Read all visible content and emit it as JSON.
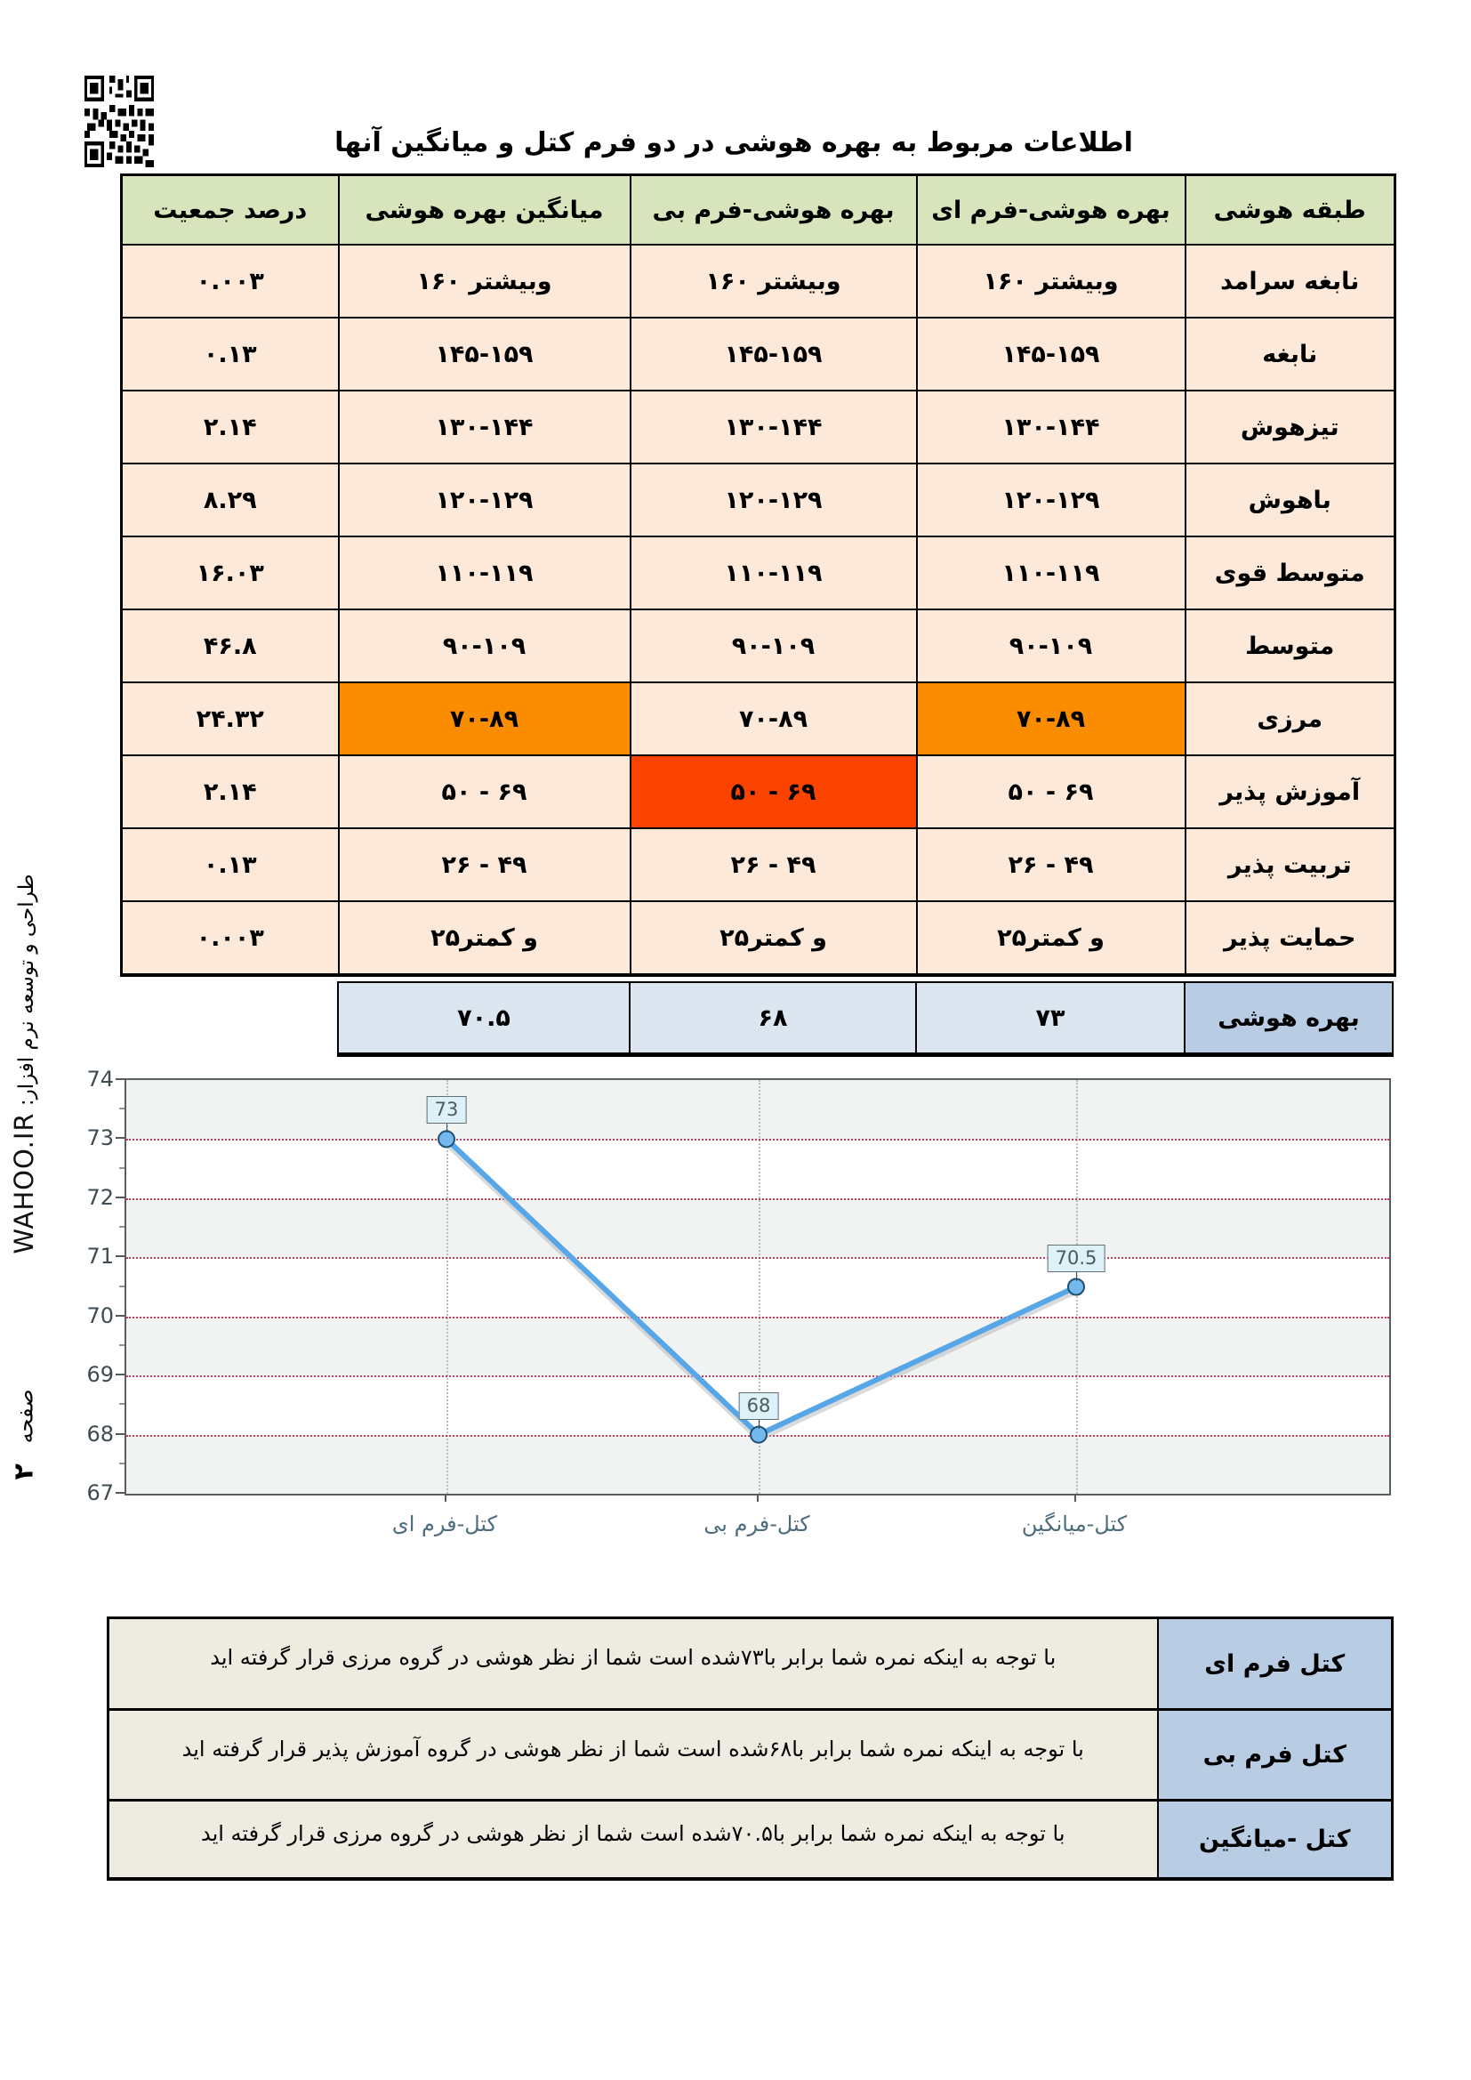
{
  "title": "اطلاعات مربوط به بهره هوشی در دو فرم کتل و میانگین آنها",
  "sidebar": {
    "credit_fa": "طراحی و توسعه نرم افزار:",
    "credit_en": "WAHOO.IR",
    "page_label": "صفحه",
    "page_number": "۲"
  },
  "iq_table": {
    "headers": [
      "طبقه هوشی",
      "بهره هوشی-فرم ای",
      "بهره هوشی-فرم بی",
      "میانگین بهره هوشی",
      "درصد جمعیت"
    ],
    "rows": [
      {
        "class": "نابغه سرامد",
        "form_a": "وبیشتر ۱۶۰",
        "form_b": "وبیشتر ۱۶۰",
        "mean": "وبیشتر ۱۶۰",
        "percent": "۰.۰۰۳",
        "highlight": {}
      },
      {
        "class": "نابغه",
        "form_a": "۱۴۵-۱۵۹",
        "form_b": "۱۴۵-۱۵۹",
        "mean": "۱۴۵-۱۵۹",
        "percent": "۰.۱۳",
        "highlight": {}
      },
      {
        "class": "تیزهوش",
        "form_a": "۱۳۰-۱۴۴",
        "form_b": "۱۳۰-۱۴۴",
        "mean": "۱۳۰-۱۴۴",
        "percent": "۲.۱۴",
        "highlight": {}
      },
      {
        "class": "باهوش",
        "form_a": "۱۲۰-۱۲۹",
        "form_b": "۱۲۰-۱۲۹",
        "mean": "۱۲۰-۱۲۹",
        "percent": "۸.۲۹",
        "highlight": {}
      },
      {
        "class": "متوسط قوی",
        "form_a": "۱۱۰-۱۱۹",
        "form_b": "۱۱۰-۱۱۹",
        "mean": "۱۱۰-۱۱۹",
        "percent": "۱۶.۰۳",
        "highlight": {}
      },
      {
        "class": "متوسط",
        "form_a": "۹۰-۱۰۹",
        "form_b": "۹۰-۱۰۹",
        "mean": "۹۰-۱۰۹",
        "percent": "۴۶.۸",
        "highlight": {}
      },
      {
        "class": "مرزی",
        "form_a": "۷۰-۸۹",
        "form_b": "۷۰-۸۹",
        "mean": "۷۰-۸۹",
        "percent": "۲۴.۳۲",
        "highlight": {
          "form_a": "orange",
          "mean": "orange"
        }
      },
      {
        "class": "آموزش پذیر",
        "form_a": "۵۰ - ۶۹",
        "form_b": "۵۰ - ۶۹",
        "mean": "۵۰ - ۶۹",
        "percent": "۲.۱۴",
        "highlight": {
          "form_b": "red"
        }
      },
      {
        "class": "تربیت پذیر",
        "form_a": "۲۶ - ۴۹",
        "form_b": "۲۶ - ۴۹",
        "mean": "۲۶ - ۴۹",
        "percent": "۰.۱۳",
        "highlight": {}
      },
      {
        "class": "حمایت پذیر",
        "form_a": "و کمتر۲۵",
        "form_b": "و کمتر۲۵",
        "mean": "و کمتر۲۵",
        "percent": "۰.۰۰۳",
        "highlight": {}
      }
    ],
    "summary": {
      "label": "بهره هوشی",
      "form_a": "۷۳",
      "form_b": "۶۸",
      "mean": "۷۰.۵"
    }
  },
  "chart_data": {
    "type": "line",
    "categories": [
      "کتل-فرم ای",
      "کتل-فرم بی",
      "کتل-میانگین"
    ],
    "values": [
      73,
      68,
      70.5
    ],
    "point_labels": [
      "73",
      "68",
      "70.5"
    ],
    "title": "",
    "xlabel": "",
    "ylabel": "",
    "ylim": [
      67,
      74
    ],
    "yticks": [
      74,
      73,
      72,
      71,
      70,
      69,
      68,
      67
    ],
    "grid": "horizontal red dotted + vertical category dotted, alternating gray bands",
    "legend": "none"
  },
  "results_table": {
    "rows": [
      {
        "label": "کتل فرم ای",
        "text": "با توجه به اینکه نمره شما برابر با۷۳شده است شما از نظر هوشی در گروه مرزی قرار گرفته اید"
      },
      {
        "label": "کتل فرم بی",
        "text": "با توجه به اینکه نمره شما برابر با۶۸شده است شما از نظر هوشی در گروه آموزش پذیر قرار گرفته اید"
      },
      {
        "label": "کتل -میانگین",
        "text": "با توجه به اینکه نمره شما برابر با۷۰.۵شده است شما از نظر هوشی در گروه مرزی قرار گرفته اید"
      }
    ]
  },
  "colors": {
    "header_green": "#d7e4bc",
    "cell_cream": "#fde9d9",
    "highlight_orange": "#fa8c00",
    "highlight_red": "#fb4300",
    "summary_value_blue": "#dce6f1",
    "summary_label_blue": "#b8cce4",
    "result_label_blue": "#b8cce4",
    "result_text_bg": "#eeece1",
    "line_blue": "#57a7e8",
    "marker_fill": "#74b9ee",
    "marker_stroke": "#20506f",
    "grid_red": "#c9173a",
    "band_gray": "#f1f2f2"
  }
}
